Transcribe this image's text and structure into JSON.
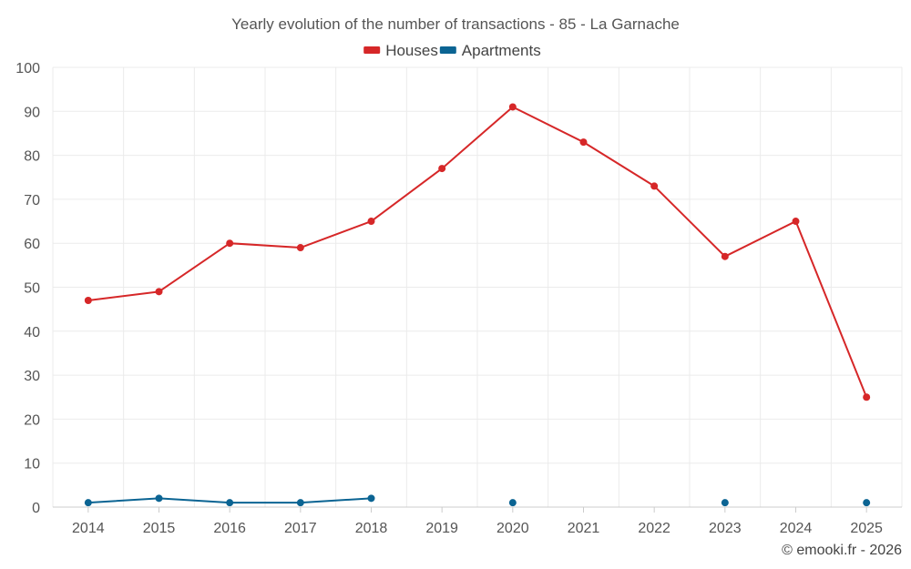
{
  "chart_data": {
    "type": "line",
    "title": "Yearly evolution of the number of transactions - 85 - La Garnache",
    "x": [
      "2014",
      "2015",
      "2016",
      "2017",
      "2018",
      "2019",
      "2020",
      "2021",
      "2022",
      "2023",
      "2024",
      "2025"
    ],
    "ylim": [
      0,
      100
    ],
    "yticks": [
      "0",
      "10",
      "20",
      "30",
      "40",
      "50",
      "60",
      "70",
      "80",
      "90",
      "100"
    ],
    "grid": true,
    "legend_position": "top-center",
    "series": [
      {
        "name": "Houses",
        "color": "#d62728",
        "values": [
          47,
          49,
          60,
          59,
          65,
          77,
          91,
          83,
          73,
          57,
          65,
          25
        ]
      },
      {
        "name": "Apartments",
        "color": "#0b6493",
        "values": [
          1,
          2,
          1,
          1,
          2,
          null,
          1,
          null,
          null,
          1,
          null,
          1
        ]
      }
    ]
  },
  "credit": "© emooki.fr - 2026"
}
